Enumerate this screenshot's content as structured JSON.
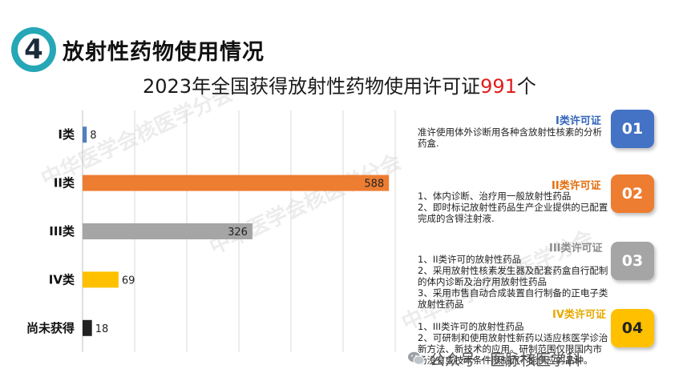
{
  "header": {
    "number": "4",
    "title": "放射性药物使用情况"
  },
  "subtitle": {
    "prefix": "2023年全国获得放射性药物使用许可证",
    "count": "991",
    "suffix": "个"
  },
  "chart_data": {
    "type": "bar",
    "orientation": "horizontal",
    "categories": [
      "I类",
      "II类",
      "III类",
      "IV类",
      "尚未获得"
    ],
    "values": [
      8,
      588,
      326,
      69,
      18
    ],
    "value_labels": [
      "8",
      "588",
      "326",
      "69",
      "18"
    ],
    "colors": [
      "#4f81bd",
      "#ed7d31",
      "#a5a5a5",
      "#ffc000",
      "#222222"
    ],
    "xlim": [
      0,
      600
    ],
    "grid": true,
    "title": "",
    "xlabel": "",
    "ylabel": ""
  },
  "legend_items": [
    {
      "title": "I类许可证",
      "title_color": "#3366bb",
      "lines": [
        "准许使用体外诊断用各种含放射性核素的分析药盒."
      ],
      "number": "01",
      "box_color": "#4472c4"
    },
    {
      "title": "II类许可证",
      "title_color": "#e46c0a",
      "lines": [
        "1、体内诊断、治疗用一般放射性药品",
        "2、即时标记放射性药品生产企业提供的已配置完成的含锝注射液."
      ],
      "number": "02",
      "box_color": "#ed7d31"
    },
    {
      "title": "III类许可证",
      "title_color": "#8c8c8c",
      "lines": [
        "1、II类许可的放射性药品",
        "2、采用放射性核素发生器及配套药盒自行配制的体内诊断及治疗用放射性药品",
        "3、采用市售自动合成装置自行制备的正电子类放射性药品"
      ],
      "number": "03",
      "box_color": "#a5a5a5"
    },
    {
      "title": "IV类许可证",
      "title_color": "#e6a800",
      "lines": [
        "1、III类许可的放射性药品",
        "2、可研制和使用放射性新药以适应核医学诊治新方法、新技术的应用。研制范围仅限国内市场没有或技术条件限制而不能供应的品种。"
      ],
      "number": "04",
      "box_color": "#ffc000"
    }
  ],
  "watermark": "中华医学会核医学分会",
  "footer": {
    "brand": "公众号 · 医脉核医学科"
  }
}
